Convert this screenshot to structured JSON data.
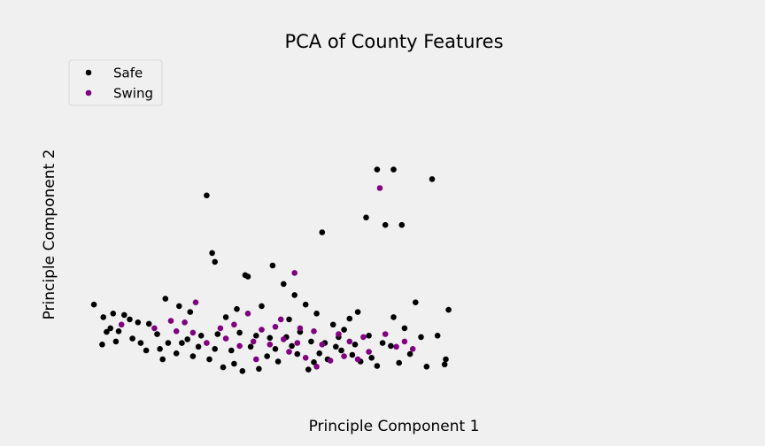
{
  "chart_data": {
    "type": "scatter",
    "title": "PCA of County Features",
    "xlabel": "Principle Component 1",
    "ylabel": "Principle Component 2",
    "xlim": [
      -10,
      100
    ],
    "ylim": [
      -4,
      40
    ],
    "grid": false,
    "ticks_visible": false,
    "legend_placement": "top-left",
    "series": [
      {
        "name": "Safe",
        "color": "#000000",
        "points": [
          [
            -9.5,
            8.2
          ],
          [
            -7.8,
            6.5
          ],
          [
            -6.0,
            7.0
          ],
          [
            -6.5,
            5.0
          ],
          [
            -8.0,
            2.8
          ],
          [
            -5.5,
            3.2
          ],
          [
            -4.0,
            6.8
          ],
          [
            3.5,
            9.0
          ],
          [
            11.0,
            23.0
          ],
          [
            12.5,
            14.0
          ],
          [
            12.0,
            15.2
          ],
          [
            18.0,
            12.2
          ],
          [
            18.5,
            12.0
          ],
          [
            23.0,
            13.5
          ],
          [
            25.0,
            11.0
          ],
          [
            29.0,
            8.2
          ],
          [
            32.0,
            18.0
          ],
          [
            40.0,
            20.0
          ],
          [
            42.0,
            26.5
          ],
          [
            45.0,
            26.5
          ],
          [
            43.5,
            19.0
          ],
          [
            46.5,
            19.0
          ],
          [
            52.0,
            25.2
          ],
          [
            49.0,
            8.5
          ],
          [
            55.0,
            7.5
          ],
          [
            53.0,
            4.0
          ],
          [
            50.0,
            3.8
          ],
          [
            37.0,
            6.3
          ],
          [
            38.5,
            7.2
          ],
          [
            31.0,
            7.0
          ],
          [
            34.0,
            5.5
          ],
          [
            45.0,
            6.5
          ],
          [
            47.0,
            5.0
          ],
          [
            43.0,
            3.0
          ],
          [
            41.0,
            1.0
          ],
          [
            48.0,
            1.5
          ],
          [
            54.5,
            0.8
          ],
          [
            51.0,
            -0.2
          ],
          [
            42.0,
            -0.1
          ],
          [
            39.0,
            0.5
          ],
          [
            44.5,
            2.6
          ],
          [
            46.0,
            0.3
          ],
          [
            36.0,
            4.8
          ],
          [
            34.5,
            2.5
          ],
          [
            40.5,
            4.0
          ],
          [
            54.3,
            0.1
          ],
          [
            27.0,
            9.5
          ],
          [
            26.0,
            6.2
          ],
          [
            21.0,
            8.0
          ],
          [
            16.5,
            7.6
          ],
          [
            14.5,
            6.5
          ],
          [
            8.0,
            7.2
          ],
          [
            6.0,
            8.0
          ],
          [
            -3.0,
            6.2
          ],
          [
            -1.5,
            5.8
          ],
          [
            0.5,
            5.6
          ],
          [
            2.0,
            4.2
          ],
          [
            -2.5,
            3.6
          ],
          [
            -5.0,
            4.6
          ],
          [
            -7.2,
            4.5
          ],
          [
            4.0,
            3.0
          ],
          [
            7.5,
            3.5
          ],
          [
            10.0,
            4.0
          ],
          [
            13.0,
            4.2
          ],
          [
            17.0,
            4.4
          ],
          [
            20.0,
            4.0
          ],
          [
            22.5,
            3.7
          ],
          [
            25.5,
            3.8
          ],
          [
            28.0,
            4.5
          ],
          [
            30.0,
            3.2
          ],
          [
            32.5,
            3.0
          ],
          [
            35.5,
            2.0
          ],
          [
            37.5,
            1.4
          ],
          [
            33.0,
            0.8
          ],
          [
            30.5,
            0.4
          ],
          [
            24.0,
            0.5
          ],
          [
            20.5,
            -0.5
          ],
          [
            17.5,
            -0.8
          ],
          [
            14.0,
            -0.3
          ],
          [
            11.5,
            0.8
          ],
          [
            8.5,
            1.2
          ],
          [
            5.5,
            1.6
          ],
          [
            2.5,
            2.2
          ],
          [
            0.0,
            2.0
          ],
          [
            -1.0,
            3.0
          ],
          [
            29.5,
            -0.6
          ],
          [
            27.5,
            1.5
          ],
          [
            22.0,
            1.2
          ],
          [
            19.0,
            2.5
          ],
          [
            15.5,
            2.0
          ],
          [
            12.5,
            2.2
          ],
          [
            9.5,
            2.5
          ],
          [
            6.5,
            3.0
          ],
          [
            3.0,
            0.8
          ],
          [
            31.5,
            1.6
          ],
          [
            35.0,
            3.8
          ],
          [
            38.0,
            2.8
          ],
          [
            26.5,
            2.6
          ],
          [
            23.5,
            2.2
          ],
          [
            16.0,
            0.2
          ]
        ]
      },
      {
        "name": "Swing",
        "color": "#800080",
        "points": [
          [
            42.5,
            24.0
          ],
          [
            27.0,
            12.5
          ],
          [
            9.0,
            8.5
          ],
          [
            4.5,
            6.0
          ],
          [
            7.0,
            5.8
          ],
          [
            13.5,
            5.0
          ],
          [
            16.0,
            5.5
          ],
          [
            21.0,
            4.8
          ],
          [
            23.5,
            5.2
          ],
          [
            25.0,
            3.5
          ],
          [
            28.0,
            5.0
          ],
          [
            30.5,
            4.6
          ],
          [
            32.0,
            2.8
          ],
          [
            35.0,
            4.2
          ],
          [
            37.0,
            3.2
          ],
          [
            39.5,
            3.8
          ],
          [
            36.0,
            1.2
          ],
          [
            33.5,
            0.6
          ],
          [
            29.0,
            1.0
          ],
          [
            26.0,
            1.8
          ],
          [
            22.5,
            2.8
          ],
          [
            19.5,
            3.2
          ],
          [
            17.0,
            2.6
          ],
          [
            14.5,
            3.6
          ],
          [
            11.0,
            3.0
          ],
          [
            8.5,
            4.4
          ],
          [
            5.5,
            4.6
          ],
          [
            1.5,
            5.0
          ],
          [
            -4.5,
            5.5
          ],
          [
            24.5,
            6.2
          ],
          [
            18.5,
            7.0
          ],
          [
            40.5,
            1.8
          ],
          [
            43.5,
            4.2
          ],
          [
            45.5,
            2.5
          ],
          [
            47.0,
            3.2
          ],
          [
            48.5,
            2.2
          ],
          [
            38.5,
            0.8
          ],
          [
            31.0,
            -0.2
          ],
          [
            27.5,
            3.0
          ],
          [
            20.0,
            0.8
          ]
        ]
      }
    ]
  }
}
